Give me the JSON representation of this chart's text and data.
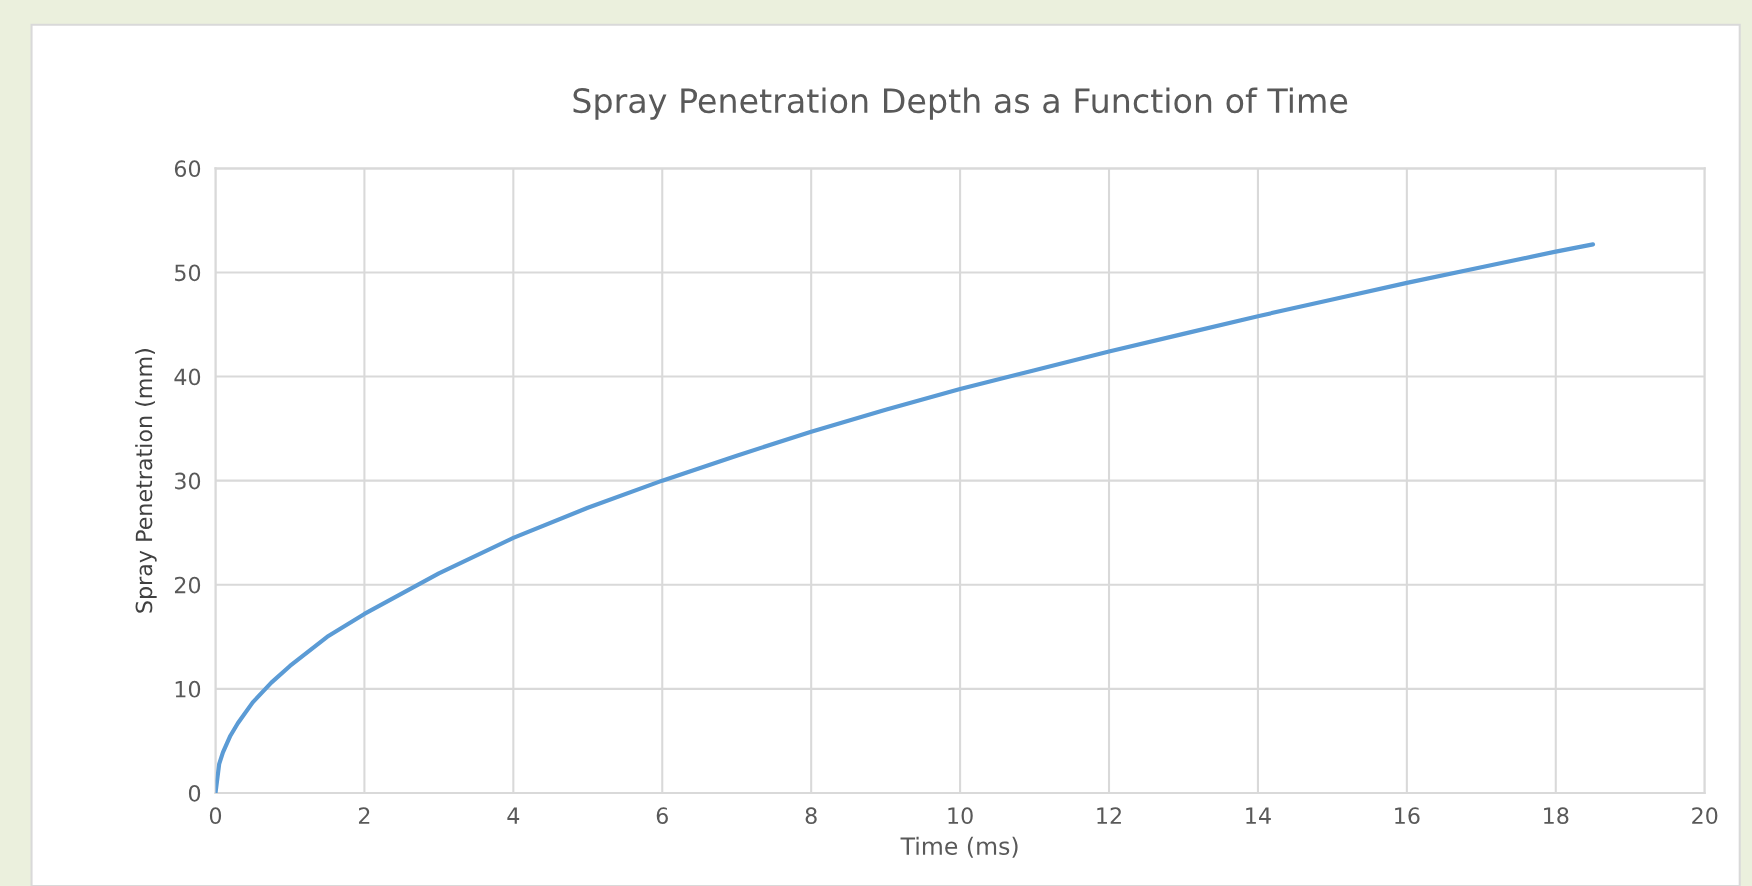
{
  "chart_data": {
    "type": "line",
    "title": "Spray Penetration Depth as a Function of Time",
    "xlabel": "Time (ms)",
    "ylabel": "Spray Penetration (mm)",
    "series": [
      {
        "color": "#5b9bd5",
        "x": [
          0,
          0.05,
          0.1,
          0.2,
          0.3,
          0.5,
          0.75,
          1,
          1.5,
          2,
          3,
          4,
          5,
          6,
          7,
          8,
          9,
          10,
          11,
          12,
          13,
          14,
          15,
          16,
          17,
          18,
          18.5
        ],
        "values": [
          0,
          2.8,
          3.9,
          5.5,
          6.7,
          8.7,
          10.6,
          12.2,
          15,
          17.2,
          21.1,
          24.5,
          27.4,
          30,
          32.4,
          34.7,
          36.8,
          38.8,
          40.6,
          42.4,
          44.1,
          45.8,
          47.4,
          49,
          50.5,
          52,
          52.7
        ]
      }
    ],
    "xlim": [
      0,
      20
    ],
    "xticks": [
      0,
      2,
      4,
      6,
      8,
      10,
      12,
      14,
      16,
      18,
      20
    ],
    "ylim": [
      0,
      60
    ],
    "yticks": [
      0,
      10,
      20,
      30,
      40,
      50,
      60
    ],
    "grid": true,
    "marker": "none",
    "line_style": "solid"
  }
}
